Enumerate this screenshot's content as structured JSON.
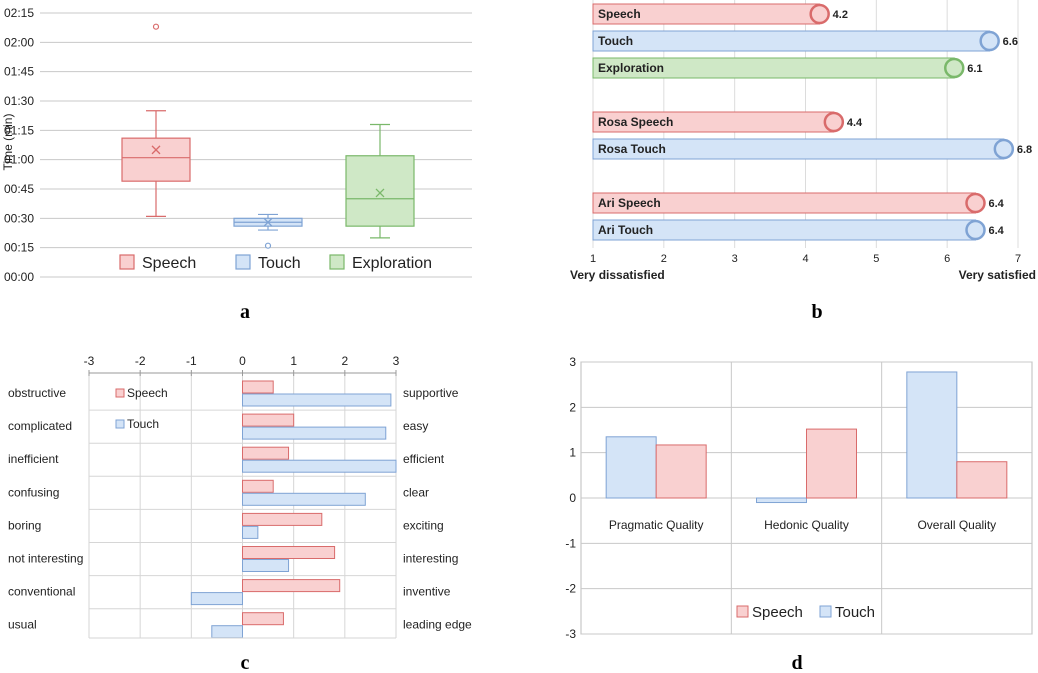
{
  "colors": {
    "speech_fill": "#f9d0d0",
    "speech_line": "#d96b6b",
    "touch_fill": "#d4e4f7",
    "touch_line": "#7fa3d4",
    "explore_fill": "#cfe8c6",
    "explore_line": "#7ab86a",
    "grid": "#c8c8c8"
  },
  "chart_data": [
    {
      "panel": "a",
      "type": "box",
      "ylabel": "Time (min)",
      "ylim_seconds": [
        0,
        135
      ],
      "yticks": [
        "00:00",
        "00:15",
        "00:30",
        "00:45",
        "01:00",
        "01:15",
        "01:30",
        "01:45",
        "02:00",
        "02:15"
      ],
      "series": [
        {
          "name": "Speech",
          "min": 31,
          "q1": 49,
          "median": 61,
          "q3": 71,
          "max": 85,
          "mean": 65,
          "outliers": [
            128
          ]
        },
        {
          "name": "Touch",
          "min": 24,
          "q1": 26,
          "median": 28,
          "q3": 30,
          "max": 32,
          "mean": 28,
          "outliers": [
            16
          ]
        },
        {
          "name": "Exploration",
          "min": 20,
          "q1": 26,
          "median": 40,
          "q3": 62,
          "max": 78,
          "mean": 43,
          "outliers": []
        }
      ],
      "legend": [
        "Speech",
        "Touch",
        "Exploration"
      ]
    },
    {
      "panel": "b",
      "type": "bar",
      "xlim": [
        1,
        7
      ],
      "xticks": [
        "1",
        "2",
        "3",
        "4",
        "5",
        "6",
        "7"
      ],
      "xlabel_left": "Very dissatisfied",
      "xlabel_right": "Very satisfied",
      "bars": [
        {
          "label": "Speech",
          "value": 4.2,
          "value_label": "4.2",
          "kind": "speech"
        },
        {
          "label": "Touch",
          "value": 6.6,
          "value_label": "6.6",
          "kind": "touch"
        },
        {
          "label": "Exploration",
          "value": 6.1,
          "value_label": "6.1",
          "kind": "explore"
        },
        {
          "label": "Rosa Speech",
          "value": 4.4,
          "value_label": "4.4",
          "kind": "speech"
        },
        {
          "label": "Rosa Touch",
          "value": 6.8,
          "value_label": "6.8",
          "kind": "touch"
        },
        {
          "label": "Ari Speech",
          "value": 6.4,
          "value_label": "6.4",
          "kind": "speech"
        },
        {
          "label": "Ari Touch",
          "value": 6.4,
          "value_label": "6.4",
          "kind": "touch"
        }
      ]
    },
    {
      "panel": "c",
      "type": "bar",
      "xlim": [
        -3,
        3
      ],
      "xticks": [
        "-3",
        "-2",
        "-1",
        "0",
        "1",
        "2",
        "3"
      ],
      "legend": [
        "Speech",
        "Touch"
      ],
      "rows": [
        {
          "left": "obstructive",
          "right": "supportive",
          "speech": 0.6,
          "touch": 2.9
        },
        {
          "left": "complicated",
          "right": "easy",
          "speech": 1.0,
          "touch": 2.8
        },
        {
          "left": "inefficient",
          "right": "efficient",
          "speech": 0.9,
          "touch": 3.0
        },
        {
          "left": "confusing",
          "right": "clear",
          "speech": 0.6,
          "touch": 2.4
        },
        {
          "left": "boring",
          "right": "exciting",
          "speech": 1.55,
          "touch": 0.3
        },
        {
          "left": "not interesting",
          "right": "interesting",
          "speech": 1.8,
          "touch": 0.9
        },
        {
          "left": "conventional",
          "right": "inventive",
          "speech": 1.9,
          "touch": -1.0
        },
        {
          "left": "usual",
          "right": "leading edge",
          "speech": 0.8,
          "touch": -0.6
        }
      ]
    },
    {
      "panel": "d",
      "type": "bar",
      "ylim": [
        -3,
        3
      ],
      "yticks": [
        "3",
        "2",
        "1",
        "0",
        "-1",
        "-2",
        "-3"
      ],
      "categories": [
        "Pragmatic Quality",
        "Hedonic Quality",
        "Overall Quality"
      ],
      "series": [
        {
          "name": "Touch",
          "values": [
            1.35,
            -0.1,
            2.78
          ]
        },
        {
          "name": "Speech",
          "values": [
            1.17,
            1.52,
            0.8
          ]
        }
      ],
      "legend": [
        "Speech",
        "Touch"
      ]
    }
  ]
}
